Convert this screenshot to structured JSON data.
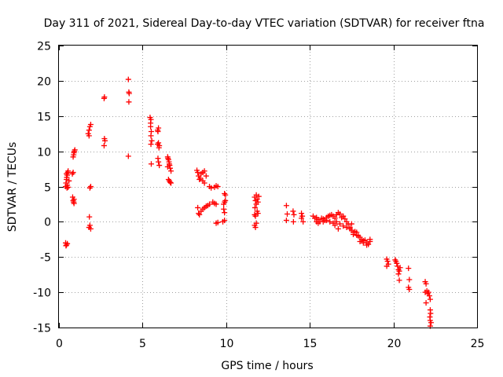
{
  "chart_data": {
    "type": "scatter",
    "title": "Day 311 of 2021, Sidereal Day-to-day VTEC variation (SDTVAR) for receiver ftna",
    "xlabel": "GPS time / hours",
    "ylabel": "SDTVAR / TECUs",
    "xlim": [
      0,
      25
    ],
    "ylim": [
      -15,
      25
    ],
    "xticks": [
      0,
      5,
      10,
      15,
      20,
      25
    ],
    "yticks": [
      -15,
      -10,
      -5,
      0,
      5,
      10,
      15,
      20,
      25
    ],
    "grid": true,
    "marker": "+",
    "color": "#ff0000",
    "points": [
      [
        0.4,
        -3.0
      ],
      [
        0.45,
        -3.3
      ],
      [
        0.42,
        -3.4
      ],
      [
        0.5,
        -3.1
      ],
      [
        0.4,
        5.0
      ],
      [
        0.42,
        5.5
      ],
      [
        0.45,
        6.0
      ],
      [
        0.47,
        6.3
      ],
      [
        0.5,
        6.6
      ],
      [
        0.52,
        7.0
      ],
      [
        0.55,
        7.2
      ],
      [
        0.48,
        4.8
      ],
      [
        0.5,
        5.2
      ],
      [
        0.55,
        4.9
      ],
      [
        0.6,
        5.8
      ],
      [
        0.45,
        6.8
      ],
      [
        0.8,
        6.8
      ],
      [
        0.85,
        7.0
      ],
      [
        0.82,
        3.5
      ],
      [
        0.85,
        3.0
      ],
      [
        0.88,
        2.8
      ],
      [
        0.9,
        2.6
      ],
      [
        0.85,
        9.2
      ],
      [
        0.88,
        9.5
      ],
      [
        0.9,
        9.8
      ],
      [
        0.92,
        10.0
      ],
      [
        0.95,
        10.2
      ],
      [
        0.9,
        3.2
      ],
      [
        1.75,
        12.5
      ],
      [
        1.8,
        13.0
      ],
      [
        1.85,
        13.5
      ],
      [
        1.9,
        13.8
      ],
      [
        1.8,
        12.2
      ],
      [
        1.85,
        4.8
      ],
      [
        1.9,
        5.0
      ],
      [
        1.82,
        0.7
      ],
      [
        1.85,
        -0.5
      ],
      [
        1.8,
        -0.8
      ],
      [
        1.9,
        -1.0
      ],
      [
        2.7,
        17.5
      ],
      [
        2.72,
        17.7
      ],
      [
        2.72,
        11.8
      ],
      [
        2.75,
        11.5
      ],
      [
        2.7,
        10.8
      ],
      [
        4.15,
        20.2
      ],
      [
        4.18,
        18.4
      ],
      [
        4.2,
        18.2
      ],
      [
        4.18,
        17.0
      ],
      [
        4.15,
        9.3
      ],
      [
        5.45,
        14.8
      ],
      [
        5.5,
        14.5
      ],
      [
        5.48,
        13.5
      ],
      [
        5.52,
        12.8
      ],
      [
        5.5,
        12.2
      ],
      [
        5.55,
        11.5
      ],
      [
        5.5,
        11.0
      ],
      [
        5.52,
        8.2
      ],
      [
        5.48,
        14.0
      ],
      [
        5.9,
        13.0
      ],
      [
        5.95,
        13.3
      ],
      [
        5.92,
        12.8
      ],
      [
        5.95,
        11.2
      ],
      [
        6.0,
        10.8
      ],
      [
        5.98,
        10.5
      ],
      [
        5.92,
        9.0
      ],
      [
        5.95,
        8.5
      ],
      [
        6.0,
        8.0
      ],
      [
        5.9,
        11.0
      ],
      [
        6.5,
        9.2
      ],
      [
        6.52,
        9.0
      ],
      [
        6.55,
        8.8
      ],
      [
        6.58,
        8.5
      ],
      [
        6.6,
        8.2
      ],
      [
        6.62,
        8.0
      ],
      [
        6.65,
        7.6
      ],
      [
        6.7,
        7.2
      ],
      [
        6.55,
        6.0
      ],
      [
        6.6,
        5.8
      ],
      [
        6.65,
        5.6
      ],
      [
        6.7,
        5.5
      ],
      [
        6.5,
        7.8
      ],
      [
        8.25,
        7.3
      ],
      [
        8.3,
        7.0
      ],
      [
        8.35,
        6.5
      ],
      [
        8.4,
        6.0
      ],
      [
        8.45,
        6.2
      ],
      [
        8.5,
        6.8
      ],
      [
        8.6,
        7.0
      ],
      [
        8.7,
        7.2
      ],
      [
        8.8,
        6.5
      ],
      [
        8.6,
        5.8
      ],
      [
        8.7,
        5.5
      ],
      [
        9.0,
        5.0
      ],
      [
        9.1,
        4.8
      ],
      [
        9.3,
        4.9
      ],
      [
        9.4,
        5.1
      ],
      [
        9.5,
        5.0
      ],
      [
        8.3,
        2.0
      ],
      [
        8.35,
        1.2
      ],
      [
        8.4,
        1.0
      ],
      [
        8.5,
        1.5
      ],
      [
        8.6,
        1.8
      ],
      [
        8.7,
        2.0
      ],
      [
        8.8,
        2.2
      ],
      [
        8.9,
        2.3
      ],
      [
        9.0,
        2.5
      ],
      [
        9.2,
        2.8
      ],
      [
        9.3,
        2.6
      ],
      [
        9.4,
        2.5
      ],
      [
        9.4,
        -0.2
      ],
      [
        9.5,
        -0.1
      ],
      [
        9.8,
        0.0
      ],
      [
        9.9,
        0.2
      ],
      [
        9.85,
        2.5
      ],
      [
        9.9,
        2.8
      ],
      [
        9.95,
        3.0
      ],
      [
        9.9,
        4.0
      ],
      [
        9.95,
        3.8
      ],
      [
        9.85,
        1.8
      ],
      [
        9.9,
        1.3
      ],
      [
        11.7,
        3.5
      ],
      [
        11.75,
        3.0
      ],
      [
        11.8,
        2.5
      ],
      [
        11.72,
        2.0
      ],
      [
        11.85,
        1.5
      ],
      [
        11.9,
        1.2
      ],
      [
        11.7,
        1.0
      ],
      [
        11.75,
        0.8
      ],
      [
        11.8,
        3.8
      ],
      [
        11.85,
        3.2
      ],
      [
        11.9,
        2.8
      ],
      [
        11.95,
        3.6
      ],
      [
        11.7,
        -0.5
      ],
      [
        11.75,
        -0.8
      ],
      [
        11.8,
        -0.2
      ],
      [
        13.6,
        2.3
      ],
      [
        13.65,
        1.1
      ],
      [
        13.6,
        0.2
      ],
      [
        14.0,
        1.5
      ],
      [
        14.05,
        1.0
      ],
      [
        14.02,
        0.0
      ],
      [
        14.5,
        1.2
      ],
      [
        14.55,
        0.8
      ],
      [
        14.5,
        0.5
      ],
      [
        14.6,
        0.0
      ],
      [
        15.2,
        0.8
      ],
      [
        15.3,
        0.5
      ],
      [
        15.4,
        0.6
      ],
      [
        15.5,
        0.3
      ],
      [
        15.6,
        0.0
      ],
      [
        15.7,
        0.5
      ],
      [
        15.8,
        0.4
      ],
      [
        15.9,
        0.2
      ],
      [
        16.0,
        0.6
      ],
      [
        16.1,
        0.8
      ],
      [
        16.2,
        0.9
      ],
      [
        16.3,
        1.0
      ],
      [
        16.4,
        0.8
      ],
      [
        16.5,
        0.5
      ],
      [
        16.6,
        1.0
      ],
      [
        16.7,
        1.3
      ],
      [
        16.8,
        1.1
      ],
      [
        16.9,
        0.6
      ],
      [
        17.0,
        0.8
      ],
      [
        17.1,
        0.4
      ],
      [
        17.2,
        0.0
      ],
      [
        17.3,
        -0.3
      ],
      [
        17.4,
        -0.8
      ],
      [
        17.5,
        -1.2
      ],
      [
        17.6,
        -1.5
      ],
      [
        17.7,
        -1.4
      ],
      [
        17.8,
        -1.9
      ],
      [
        17.9,
        -2.0
      ],
      [
        18.0,
        -2.2
      ],
      [
        18.1,
        -2.5
      ],
      [
        18.2,
        -2.7
      ],
      [
        18.3,
        -2.6
      ],
      [
        18.4,
        -3.0
      ],
      [
        18.5,
        -3.2
      ],
      [
        18.6,
        -2.8
      ],
      [
        15.4,
        0.0
      ],
      [
        15.5,
        -0.2
      ],
      [
        15.8,
        0.0
      ],
      [
        16.0,
        0.2
      ],
      [
        16.2,
        0.0
      ],
      [
        16.4,
        -0.2
      ],
      [
        16.6,
        0.0
      ],
      [
        16.8,
        -0.3
      ],
      [
        17.0,
        -0.6
      ],
      [
        17.2,
        -0.8
      ],
      [
        17.4,
        -1.0
      ],
      [
        17.6,
        -1.8
      ],
      [
        17.8,
        -1.5
      ],
      [
        18.0,
        -2.8
      ],
      [
        18.2,
        -3.0
      ],
      [
        18.4,
        -3.3
      ],
      [
        18.6,
        -2.5
      ],
      [
        16.5,
        -0.5
      ],
      [
        16.7,
        -1.0
      ],
      [
        17.5,
        -0.3
      ],
      [
        19.6,
        -5.3
      ],
      [
        19.65,
        -5.6
      ],
      [
        19.7,
        -6.0
      ],
      [
        19.6,
        -6.3
      ],
      [
        20.1,
        -5.4
      ],
      [
        20.15,
        -5.6
      ],
      [
        20.2,
        -5.9
      ],
      [
        20.25,
        -6.3
      ],
      [
        20.3,
        -6.8
      ],
      [
        20.35,
        -7.0
      ],
      [
        20.3,
        -7.4
      ],
      [
        20.4,
        -6.5
      ],
      [
        20.35,
        -8.3
      ],
      [
        20.9,
        -6.6
      ],
      [
        20.95,
        -8.2
      ],
      [
        20.9,
        -9.3
      ],
      [
        20.95,
        -9.6
      ],
      [
        21.9,
        -8.5
      ],
      [
        21.95,
        -8.8
      ],
      [
        21.9,
        -10.0
      ],
      [
        22.0,
        -9.8
      ],
      [
        22.05,
        -10.2
      ],
      [
        22.1,
        -10.0
      ],
      [
        22.15,
        -10.5
      ],
      [
        22.2,
        -11.0
      ],
      [
        21.95,
        -11.5
      ],
      [
        22.2,
        -12.5
      ],
      [
        22.22,
        -13.0
      ],
      [
        22.18,
        -13.5
      ],
      [
        22.2,
        -14.0
      ],
      [
        22.25,
        -14.3
      ],
      [
        22.2,
        -14.8
      ]
    ]
  }
}
